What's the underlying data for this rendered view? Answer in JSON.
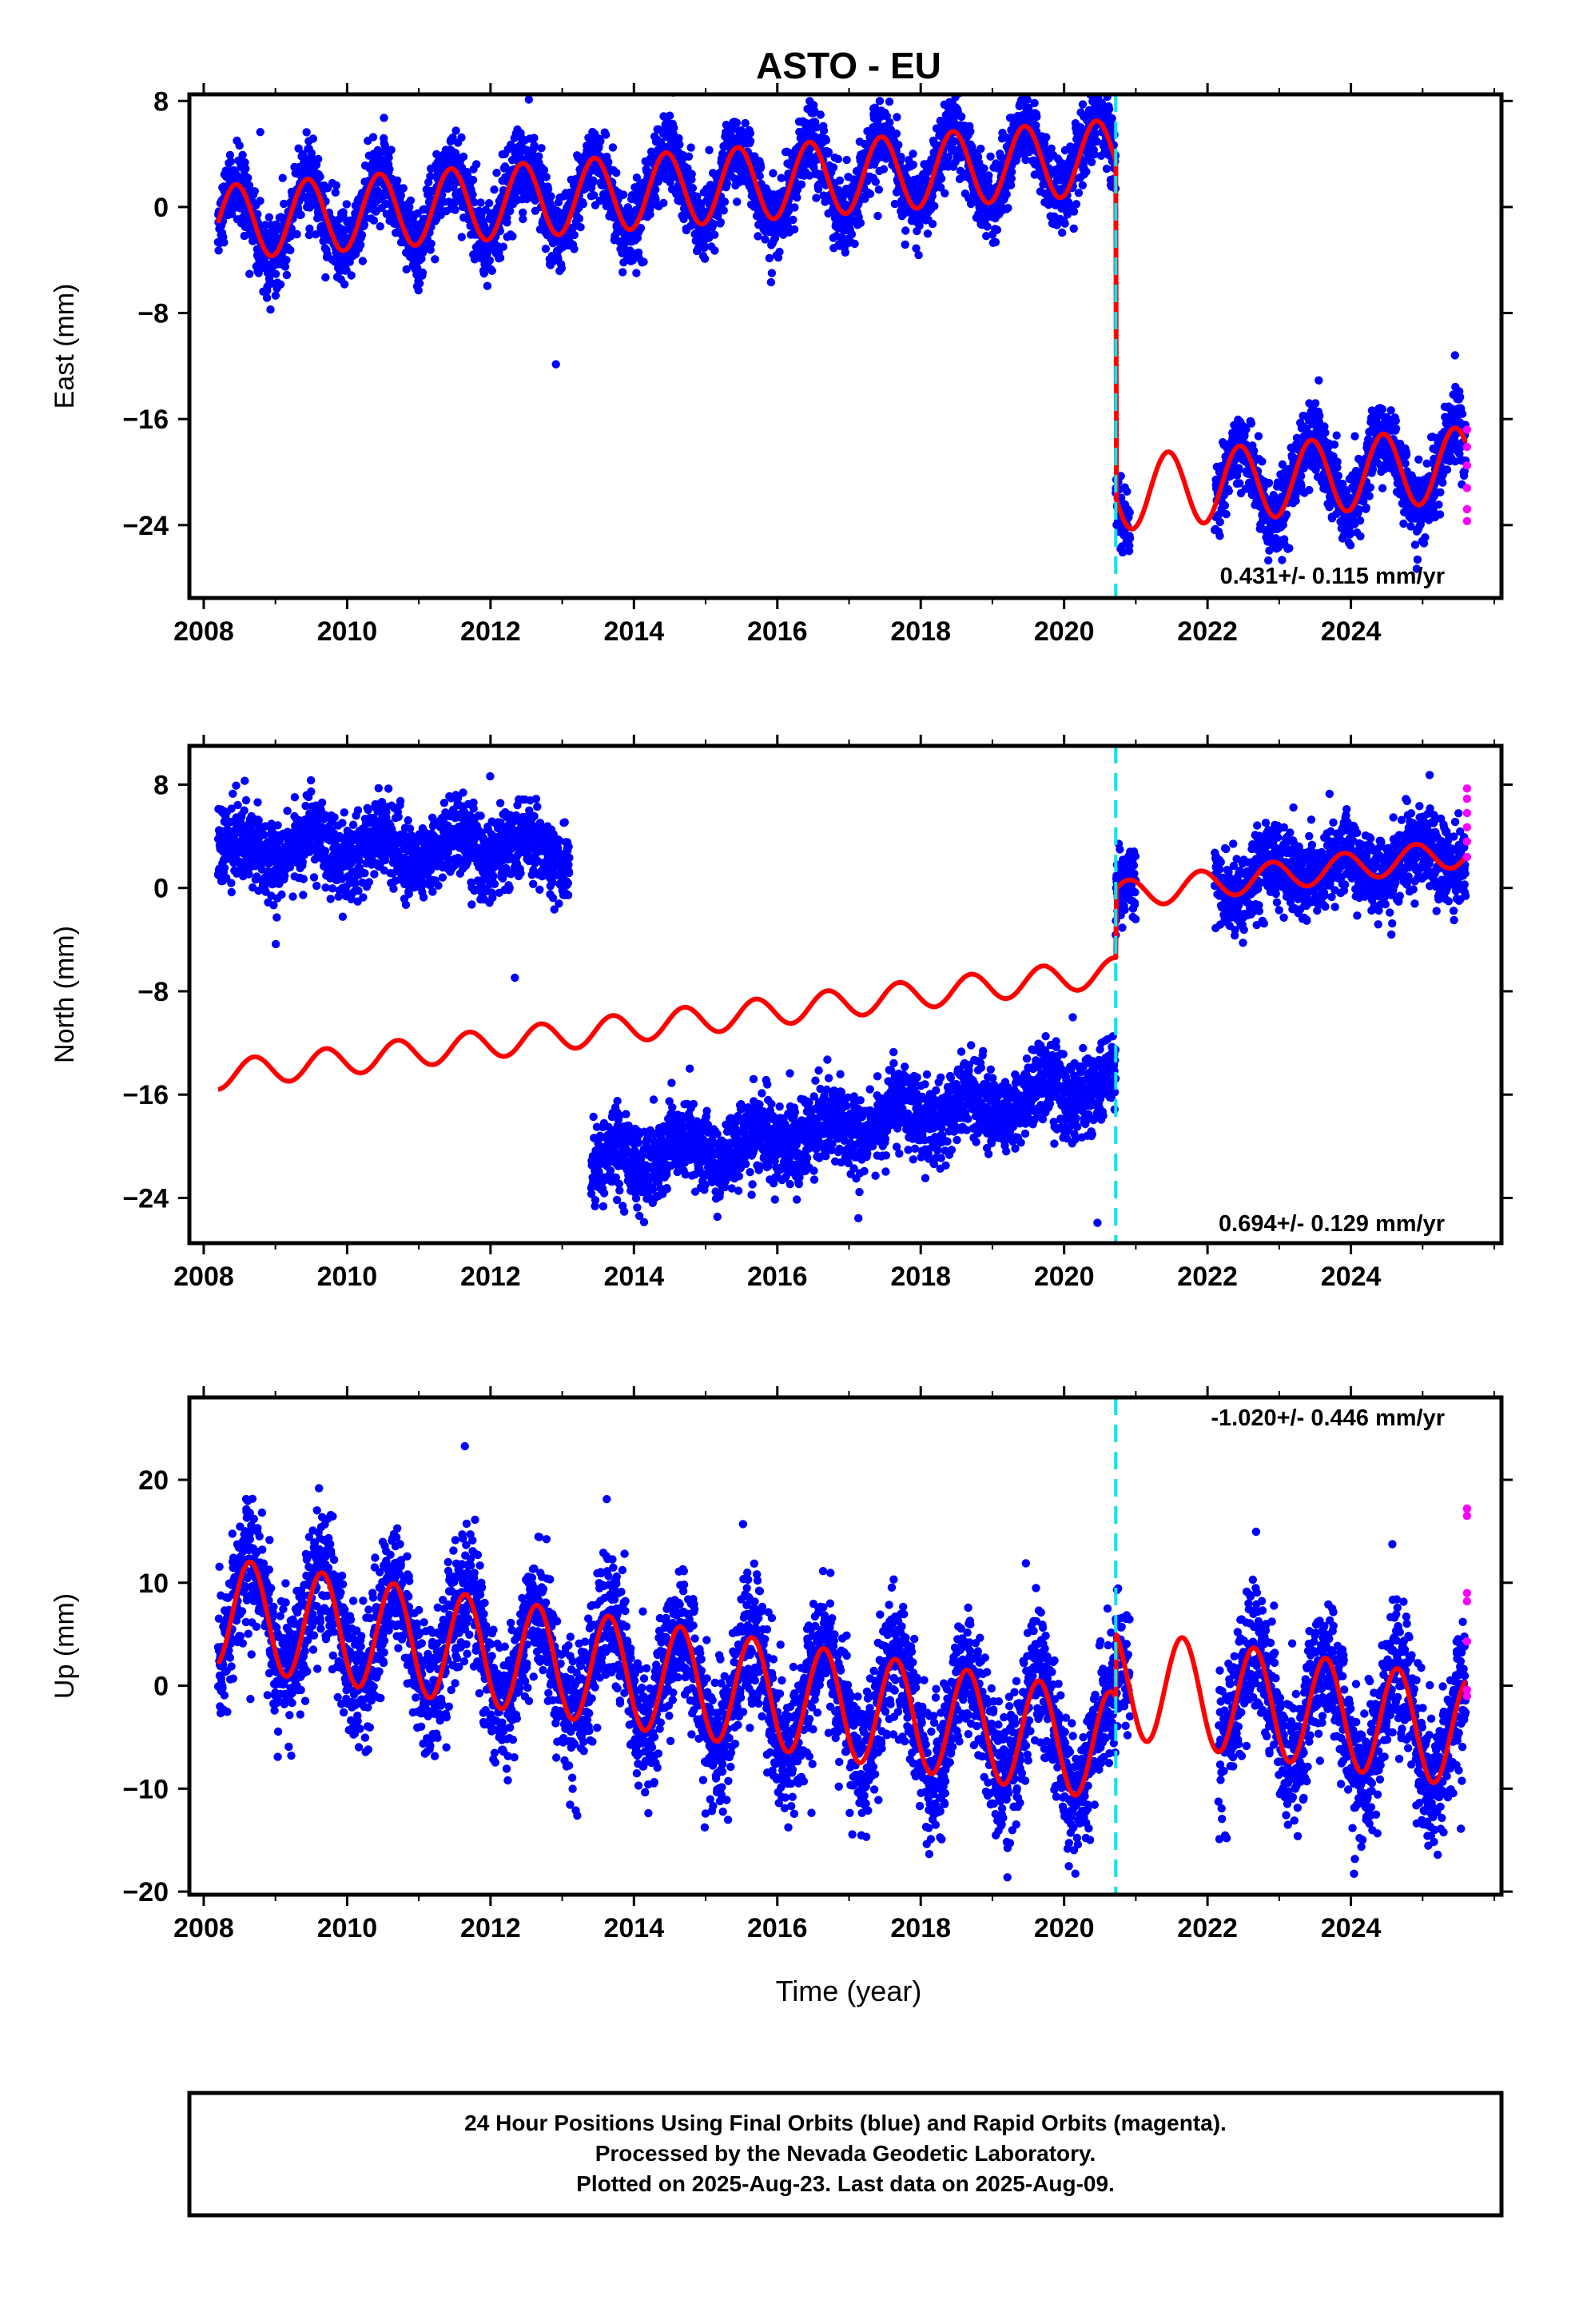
{
  "title": "ASTO - EU",
  "xlabel": "Time (year)",
  "colors": {
    "final": "#0000ff",
    "rapid": "#ff00ff",
    "model": "#ff0000",
    "event": "#00e5ee"
  },
  "footer": {
    "line1": "24 Hour Positions Using Final Orbits (blue) and Rapid Orbits (magenta).",
    "line2": "Processed by the Nevada Geodetic Laboratory.",
    "line3": "Plotted on 2025-Aug-23. Last data on 2025-Aug-09."
  },
  "chart_data": [
    {
      "type": "scatter",
      "name": "east",
      "ylabel": "East (mm)",
      "rate": "0.431+/- 0.115 mm/yr",
      "xlim": [
        2007.8,
        2026.1
      ],
      "ylim": [
        -29.5,
        8.5
      ],
      "xticks": [
        2008,
        2010,
        2012,
        2014,
        2016,
        2018,
        2020,
        2022,
        2024
      ],
      "yticks": [
        8,
        0,
        -8,
        -16,
        -24
      ],
      "event_line_x": 2020.72,
      "data_range": [
        2008.2,
        2025.6
      ],
      "gaps": [
        [
          2020.92,
          2022.1
        ]
      ],
      "model": {
        "segments": [
          {
            "x0": 2008.2,
            "x1": 2020.72,
            "y0": -1.2,
            "rate": 0.4,
            "amp": 2.8,
            "phase_year": 2008.45
          },
          {
            "x0": 2020.72,
            "x1": 2025.6,
            "y0": -21.6,
            "rate": 0.45,
            "amp": 2.8,
            "phase_year": 2021.45
          }
        ]
      },
      "noise_sd": 1.4,
      "rapid": [
        [
          2025.62,
          -16.8
        ],
        [
          2025.62,
          -18.1
        ],
        [
          2025.62,
          -19.5
        ],
        [
          2025.62,
          -21.2
        ],
        [
          2025.62,
          -22.8
        ],
        [
          2025.62,
          -23.7
        ]
      ]
    },
    {
      "type": "scatter",
      "name": "north",
      "ylabel": "North (mm)",
      "rate": "0.694+/- 0.129 mm/yr",
      "xlim": [
        2007.8,
        2026.1
      ],
      "ylim": [
        -27.5,
        11
      ],
      "xticks": [
        2008,
        2010,
        2012,
        2014,
        2016,
        2018,
        2020,
        2022,
        2024
      ],
      "yticks": [
        8,
        0,
        -8,
        -16,
        -24
      ],
      "event_line_x": 2020.72,
      "data_range": [
        2008.2,
        2025.6
      ],
      "gaps": [
        [
          2013.1,
          2013.4
        ],
        [
          2021.0,
          2022.1
        ]
      ],
      "model": {
        "segments": [
          {
            "x0": 2008.2,
            "x1": 2020.72,
            "y0": -14.5,
            "rate": 0.64,
            "amp": 1.1,
            "phase_year": 2008.7
          },
          {
            "x0": 2020.72,
            "x1": 2025.6,
            "y0": -0.6,
            "rate": 0.69,
            "amp": 1.1,
            "phase_year": 2020.9
          }
        ]
      },
      "observed": [
        {
          "x0": 2008.2,
          "x1": 2013.1,
          "y0": 3.0,
          "rate": 0.0,
          "amp": 1.1,
          "phase_year": 2009.5
        },
        {
          "x0": 2013.4,
          "x1": 2020.72,
          "y0": -21.5,
          "rate": 0.85,
          "amp": 1.1,
          "phase_year": 2013.7
        },
        {
          "x0": 2020.72,
          "x1": 2025.6,
          "y0": -0.5,
          "rate": 0.69,
          "amp": 1.1,
          "phase_year": 2020.9
        }
      ],
      "noise_sd": 1.5,
      "rapid": [
        [
          2025.62,
          7.7
        ],
        [
          2025.62,
          6.9
        ],
        [
          2025.62,
          5.8
        ],
        [
          2025.62,
          4.7
        ],
        [
          2025.62,
          3.6
        ],
        [
          2025.62,
          2.4
        ]
      ]
    },
    {
      "type": "scatter",
      "name": "up",
      "ylabel": "Up (mm)",
      "rate": "-1.020+/- 0.446 mm/yr",
      "xlim": [
        2007.8,
        2026.1
      ],
      "ylim": [
        -20.3,
        28
      ],
      "xticks": [
        2008,
        2010,
        2012,
        2014,
        2016,
        2018,
        2020,
        2022,
        2024
      ],
      "yticks": [
        20,
        10,
        0,
        -10,
        -20
      ],
      "event_line_x": 2020.72,
      "data_range": [
        2008.2,
        2025.6
      ],
      "gaps": [
        [
          2020.92,
          2022.15
        ]
      ],
      "model": {
        "segments": [
          {
            "x0": 2008.2,
            "x1": 2020.72,
            "y0": 7.2,
            "rate": -1.05,
            "amp": 5.3,
            "phase_year": 2008.65
          },
          {
            "x0": 2020.72,
            "x1": 2025.6,
            "y0": 0.3,
            "rate": -1.0,
            "amp": 5.3,
            "phase_year": 2020.65
          }
        ]
      },
      "noise_sd": 3.2,
      "rapid": [
        [
          2025.62,
          17.2
        ],
        [
          2025.62,
          16.5
        ],
        [
          2025.62,
          9.0
        ],
        [
          2025.62,
          8.2
        ],
        [
          2025.62,
          4.3
        ],
        [
          2025.62,
          -0.4
        ],
        [
          2025.62,
          -1.0
        ]
      ]
    }
  ]
}
